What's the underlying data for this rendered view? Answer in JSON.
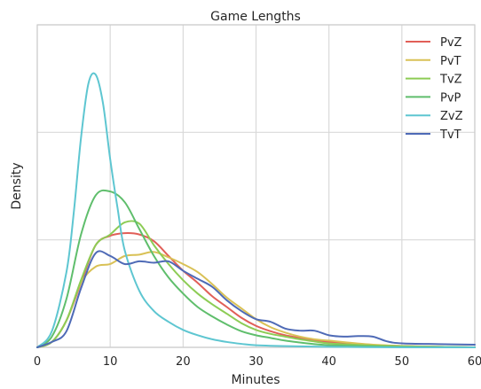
{
  "chart_data": {
    "type": "line",
    "title": "Game Lengths",
    "xlabel": "Minutes",
    "ylabel": "Density",
    "xlim": [
      0,
      60
    ],
    "ylim": [
      0,
      0.12
    ],
    "xticks": [
      0,
      10,
      20,
      30,
      40,
      50,
      60
    ],
    "yticks": [
      0,
      0.04,
      0.08,
      0.12
    ],
    "grid": true,
    "legend_position": "top-right",
    "series": [
      {
        "name": "PvZ",
        "color": "#e15f58",
        "x": [
          0,
          2,
          4,
          6,
          8,
          10,
          12,
          14,
          16,
          18,
          20,
          22,
          24,
          26,
          28,
          30,
          32,
          34,
          36,
          38,
          40,
          45,
          50,
          55,
          60
        ],
        "y": [
          0,
          0.002,
          0.01,
          0.024,
          0.038,
          0.0415,
          0.0425,
          0.042,
          0.0395,
          0.034,
          0.0285,
          0.024,
          0.019,
          0.015,
          0.011,
          0.008,
          0.006,
          0.0045,
          0.0035,
          0.0025,
          0.002,
          0.001,
          0.0005,
          0.0002,
          0
        ]
      },
      {
        "name": "PvT",
        "color": "#d9c156",
        "x": [
          0,
          2,
          4,
          6,
          8,
          10,
          12,
          14,
          16,
          18,
          20,
          22,
          24,
          26,
          28,
          30,
          32,
          34,
          36,
          38,
          40,
          45,
          50,
          55,
          60
        ],
        "y": [
          0,
          0.002,
          0.01,
          0.024,
          0.03,
          0.031,
          0.034,
          0.0345,
          0.0355,
          0.0335,
          0.031,
          0.028,
          0.0235,
          0.0185,
          0.0145,
          0.0105,
          0.0075,
          0.0055,
          0.004,
          0.003,
          0.0025,
          0.0012,
          0.0005,
          0.0002,
          0
        ]
      },
      {
        "name": "TvZ",
        "color": "#8dcc55",
        "x": [
          0,
          2,
          4,
          6,
          8,
          10,
          12,
          14,
          16,
          18,
          20,
          22,
          24,
          26,
          28,
          30,
          32,
          34,
          36,
          38,
          40,
          45,
          50,
          55,
          60
        ],
        "y": [
          0,
          0.002,
          0.01,
          0.025,
          0.038,
          0.042,
          0.0465,
          0.046,
          0.038,
          0.031,
          0.025,
          0.02,
          0.016,
          0.0125,
          0.009,
          0.0065,
          0.005,
          0.004,
          0.003,
          0.0022,
          0.0015,
          0.0008,
          0.0004,
          0.0002,
          0
        ]
      },
      {
        "name": "PvP",
        "color": "#5fbe6c",
        "x": [
          0,
          2,
          4,
          6,
          8,
          10,
          12,
          14,
          16,
          18,
          20,
          22,
          24,
          26,
          28,
          30,
          32,
          34,
          36,
          38,
          40,
          45,
          50,
          55,
          60
        ],
        "y": [
          0,
          0.004,
          0.018,
          0.042,
          0.0565,
          0.058,
          0.054,
          0.044,
          0.034,
          0.026,
          0.02,
          0.015,
          0.0115,
          0.0085,
          0.006,
          0.0045,
          0.0035,
          0.0025,
          0.0018,
          0.0012,
          0.0008,
          0.0004,
          0.0002,
          0.0001,
          0
        ]
      },
      {
        "name": "ZvZ",
        "color": "#5ec6d1",
        "x": [
          0,
          2,
          4,
          5,
          6,
          7,
          8,
          9,
          10,
          11,
          12,
          14,
          16,
          18,
          20,
          22,
          24,
          26,
          28,
          30,
          35,
          40,
          45,
          50,
          55,
          60
        ],
        "y": [
          0,
          0.006,
          0.028,
          0.05,
          0.078,
          0.098,
          0.1015,
          0.091,
          0.07,
          0.052,
          0.036,
          0.021,
          0.0135,
          0.0095,
          0.0065,
          0.0045,
          0.003,
          0.002,
          0.0013,
          0.0008,
          0.0004,
          0.0002,
          0.0001,
          0,
          0,
          0
        ]
      },
      {
        "name": "TvT",
        "color": "#4e6ab6",
        "x": [
          0,
          2,
          4,
          6,
          8,
          10,
          12,
          14,
          16,
          18,
          20,
          22,
          24,
          26,
          28,
          30,
          32,
          34,
          36,
          38,
          40,
          42,
          44,
          46,
          48,
          50,
          55,
          60
        ],
        "y": [
          0,
          0.002,
          0.006,
          0.022,
          0.035,
          0.034,
          0.031,
          0.032,
          0.0315,
          0.032,
          0.0285,
          0.0255,
          0.0225,
          0.0175,
          0.0135,
          0.0105,
          0.0095,
          0.007,
          0.0062,
          0.0062,
          0.0045,
          0.004,
          0.0042,
          0.004,
          0.0022,
          0.0015,
          0.0012,
          0.001
        ]
      }
    ]
  }
}
